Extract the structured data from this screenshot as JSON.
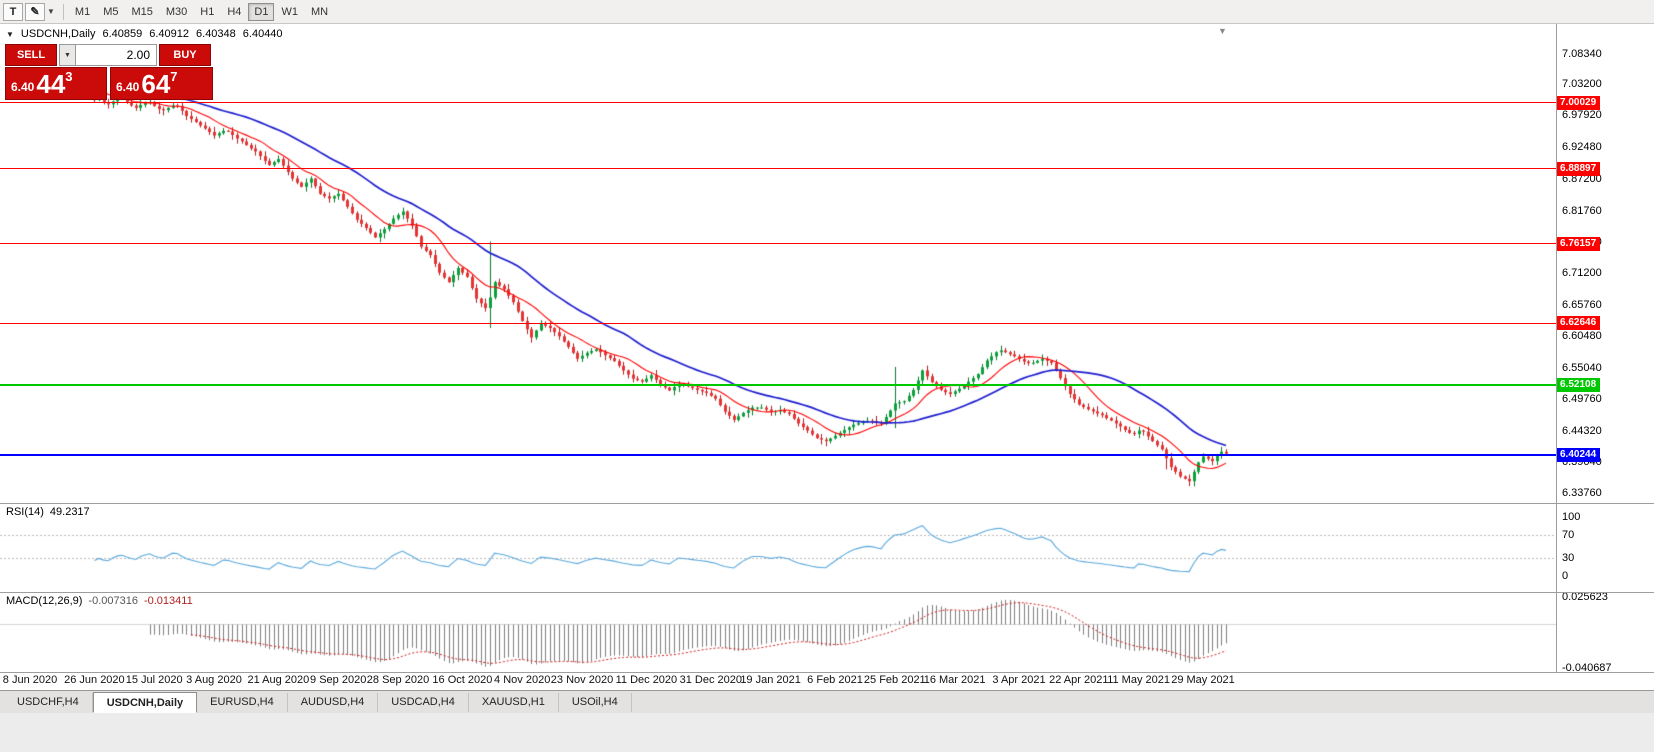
{
  "palette": {
    "candle_up": "#0ca13c",
    "candle_up_wick": "#0a7a2e",
    "candle_down": "#e43434",
    "candle_down_wick": "#b02020",
    "ma_fast": "#ff0000",
    "ma_slow": "#1c1ccf",
    "rsi_line": "#5da9dc",
    "indicator_level": "#bcbcbc",
    "macd_hist": "#7f7f7f",
    "macd_signal": "#cc2222",
    "level_red": "#ff0000",
    "level_green": "#00c800",
    "level_blue": "#0000ff",
    "trade_red": "#cb0a0a"
  },
  "toolbar": {
    "tools": [
      {
        "name": "text-tool",
        "glyph": "T"
      },
      {
        "name": "pen-tool",
        "glyph": "✎"
      },
      {
        "name": "pen-dropdown",
        "glyph": "▼"
      }
    ],
    "timeframes": [
      "M1",
      "M5",
      "M15",
      "M30",
      "H1",
      "H4",
      "D1",
      "W1",
      "MN"
    ],
    "active_timeframe": "D1"
  },
  "ohlc_line": {
    "icon": "▼",
    "symbol": "USDCNH,Daily",
    "o": "6.40859",
    "h": "6.40912",
    "l": "6.40348",
    "c": "6.40440"
  },
  "trade": {
    "sell_label": "SELL",
    "buy_label": "BUY",
    "spinner_glyph": "▼",
    "volume": "2.00",
    "sell_price": {
      "small": "6.40",
      "big": "44",
      "sup": "3"
    },
    "buy_price": {
      "small": "6.40",
      "big": "64",
      "sup": "7"
    }
  },
  "shift_marker": "▼",
  "levels": [
    {
      "label": "7.00029",
      "price": 7.00029,
      "color": "#ff0000",
      "thickness": 1
    },
    {
      "label": "6.88897",
      "price": 6.88897,
      "color": "#ff0000",
      "thickness": 1
    },
    {
      "label": "6.76157",
      "price": 6.76157,
      "color": "#ff0000",
      "thickness": 1
    },
    {
      "label": "6.62646",
      "price": 6.62646,
      "color": "#ff0000",
      "thickness": 1
    },
    {
      "label": "6.52108",
      "price": 6.52108,
      "color": "#00c800",
      "thickness": 2
    },
    {
      "label": "6.40244",
      "price": 6.40244,
      "color": "#0000ff",
      "thickness": 2
    }
  ],
  "price_axis_labels": [
    "7.08340",
    "7.03200",
    "6.97920",
    "6.92480",
    "6.87200",
    "6.81760",
    "6.76480",
    "6.71200",
    "6.65760",
    "6.60480",
    "6.55040",
    "6.49760",
    "6.44320",
    "6.39040",
    "6.33760"
  ],
  "rsi": {
    "name": "RSI(14)",
    "value": "49.2317",
    "axis": [
      {
        "label": "100",
        "v": 100
      },
      {
        "label": "70",
        "v": 70
      },
      {
        "label": "30",
        "v": 30
      },
      {
        "label": "0",
        "v": 0
      }
    ],
    "dotted_levels": [
      70,
      30
    ],
    "period": 14
  },
  "macd": {
    "name": "MACD(12,26,9)",
    "value_main": "-0.007316",
    "value_signal": "-0.013411",
    "axis_top": "0.025623",
    "axis_bottom": "-0.040687",
    "fast": 12,
    "slow": 26,
    "signal": 9
  },
  "date_axis": {
    "labels": [
      "8 Jun 2020",
      "26 Jun 2020",
      "15 Jul 2020",
      "3 Aug 2020",
      "21 Aug 2020",
      "9 Sep 2020",
      "28 Sep 2020",
      "16 Oct 2020",
      "4 Nov 2020",
      "23 Nov 2020",
      "11 Dec 2020",
      "31 Dec 2020",
      "19 Jan 2021",
      "6 Feb 2021",
      "25 Feb 2021",
      "16 Mar 2021",
      "3 Apr 2021",
      "22 Apr 2021",
      "11 May 2021",
      "29 May 2021"
    ],
    "day_index": [
      0,
      14,
      27,
      40,
      54,
      67,
      80,
      94,
      107,
      120,
      134,
      148,
      161,
      175,
      188,
      201,
      215,
      228,
      241,
      255
    ]
  },
  "tabs": [
    {
      "label": "USDCHF,H4",
      "active": false
    },
    {
      "label": "USDCNH,Daily",
      "active": true
    },
    {
      "label": "EURUSD,H4",
      "active": false
    },
    {
      "label": "AUDUSD,H4",
      "active": false
    },
    {
      "label": "USDCAD,H4",
      "active": false
    },
    {
      "label": "XAUUSD,H1",
      "active": false
    },
    {
      "label": "USOil,H4",
      "active": false
    }
  ],
  "chart_data": {
    "type": "candlestick",
    "title": "USDCNH,Daily",
    "symbol": "USDCNH",
    "timeframe": "Daily",
    "x_range": [
      "8 Jun 2020",
      "11 Jun 2021"
    ],
    "y_range_visible": [
      6.3376,
      7.0834
    ],
    "current_bar": {
      "open": 6.40859,
      "high": 6.40912,
      "low": 6.40348,
      "close": 6.4044
    },
    "bid": 6.4044,
    "ask": 6.4064,
    "horizontal_levels": [
      7.00029,
      6.88897,
      6.76157,
      6.62646,
      6.52108,
      6.40244
    ],
    "moving_averages": [
      {
        "period": 10,
        "color": "#ff0000"
      },
      {
        "period": 30,
        "color": "#1c1ccf"
      }
    ],
    "indicators": [
      {
        "name": "RSI",
        "period": 14,
        "current": 49.2317
      },
      {
        "name": "MACD",
        "params": [
          12,
          26,
          9
        ],
        "current_main": -0.007316,
        "current_signal": -0.013411,
        "scale": [
          -0.040687,
          0.025623
        ]
      }
    ],
    "closes": [
      7.045,
      7.04,
      7.033,
      7.03,
      7.036,
      7.033,
      7.04,
      7.034,
      7.029,
      7.02,
      7.026,
      7.022,
      7.025,
      7.015,
      7.005,
      7.009,
      7.001,
      6.998,
      7.003,
      7.007,
      7.008,
      7.002,
      6.996,
      6.992,
      6.997,
      7.0,
      7.002,
      6.995,
      6.99,
      6.988,
      6.992,
      6.996,
      6.995,
      6.987,
      6.978,
      6.973,
      6.968,
      6.962,
      6.957,
      6.951,
      6.945,
      6.949,
      6.953,
      6.952,
      6.946,
      6.94,
      6.935,
      6.929,
      6.923,
      6.918,
      6.91,
      6.902,
      6.895,
      6.9,
      6.905,
      6.894,
      6.883,
      6.872,
      6.865,
      6.858,
      6.865,
      6.872,
      6.859,
      6.846,
      6.842,
      6.838,
      6.842,
      6.846,
      6.835,
      6.824,
      6.813,
      6.802,
      6.795,
      6.788,
      6.78,
      6.772,
      6.779,
      6.786,
      6.795,
      6.804,
      6.81,
      6.816,
      6.804,
      6.792,
      6.774,
      6.756,
      6.749,
      6.742,
      6.727,
      6.712,
      6.704,
      6.696,
      6.708,
      6.72,
      6.712,
      6.705,
      6.686,
      6.668,
      6.66,
      6.652,
      6.67,
      6.696,
      6.69,
      6.684,
      6.673,
      6.662,
      6.646,
      6.63,
      6.616,
      6.602,
      6.614,
      6.626,
      6.622,
      6.618,
      6.611,
      6.604,
      6.595,
      6.586,
      6.576,
      6.566,
      6.571,
      6.576,
      6.579,
      6.582,
      6.577,
      6.572,
      6.567,
      6.562,
      6.554,
      6.546,
      6.539,
      6.532,
      6.5295,
      6.527,
      6.532,
      6.538,
      6.53,
      6.522,
      6.517,
      6.512,
      6.518,
      6.524,
      6.5215,
      6.519,
      6.516,
      6.513,
      6.5105,
      6.508,
      6.503,
      6.498,
      6.487,
      6.476,
      6.469,
      6.462,
      6.468,
      6.474,
      6.4785,
      6.483,
      6.483,
      6.483,
      6.4795,
      6.476,
      6.477,
      6.478,
      6.475,
      6.472,
      6.464,
      6.456,
      6.45,
      6.444,
      6.4375,
      6.431,
      6.4285,
      6.426,
      6.4305,
      6.435,
      6.44,
      6.445,
      6.4495,
      6.454,
      6.4565,
      6.459,
      6.4605,
      6.46,
      6.458,
      6.456,
      6.467,
      6.478,
      6.49,
      6.492,
      6.494,
      6.503,
      6.513,
      6.529,
      6.546,
      6.536,
      6.526,
      6.5195,
      6.513,
      6.509,
      6.506,
      6.5105,
      6.515,
      6.521,
      6.527,
      6.533,
      6.54,
      6.5515,
      6.563,
      6.57,
      6.577,
      6.58,
      6.577,
      6.5735,
      6.57,
      6.5655,
      6.561,
      6.5585,
      6.559,
      6.5625,
      6.566,
      6.5625,
      6.559,
      6.546,
      6.533,
      6.5195,
      6.506,
      6.497,
      6.488,
      6.484,
      6.48,
      6.4765,
      6.473,
      6.47,
      6.465,
      6.461,
      6.456,
      6.451,
      6.445,
      6.44,
      6.438,
      6.444,
      6.442,
      6.434,
      6.426,
      6.419,
      6.412,
      6.397,
      6.382,
      6.374,
      6.366,
      6.362,
      6.358,
      6.374,
      6.39,
      6.4,
      6.396,
      6.392,
      6.402,
      6.408,
      6.4044
    ],
    "wick_pattern": [
      0.006,
      0.012,
      0.003,
      0.015,
      0.008,
      0.004,
      0.011,
      0.006,
      0.016,
      0.005,
      0.009,
      0.003,
      0.013,
      0.007,
      0.002,
      0.01
    ],
    "wick_overrides": {
      "100": [
        6.765,
        6.618
      ],
      "188": [
        6.552,
        6.448
      ],
      "247": [
        6.403,
        6.378
      ]
    }
  }
}
